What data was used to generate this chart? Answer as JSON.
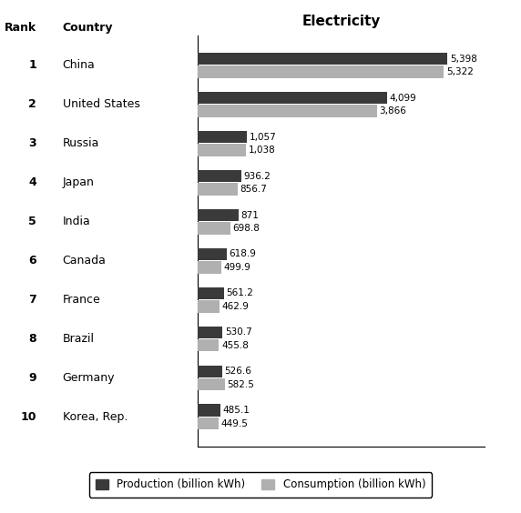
{
  "ranks": [
    1,
    2,
    3,
    4,
    5,
    6,
    7,
    8,
    9,
    10
  ],
  "countries": [
    "China",
    "United States",
    "Russia",
    "Japan",
    "India",
    "Canada",
    "France",
    "Brazil",
    "Germany",
    "Korea, Rep."
  ],
  "production": [
    5398,
    4099,
    1057,
    936.2,
    871,
    618.9,
    561.2,
    530.7,
    526.6,
    485.1
  ],
  "consumption": [
    5322,
    3866,
    1038,
    856.7,
    698.8,
    499.9,
    462.9,
    455.8,
    582.5,
    449.5
  ],
  "production_labels": [
    "5,398",
    "4,099",
    "1,057",
    "936.2",
    "871",
    "618.9",
    "561.2",
    "530.7",
    "526.6",
    "485.1"
  ],
  "consumption_labels": [
    "5,322",
    "3,866",
    "1,038",
    "856.7",
    "698.8",
    "499.9",
    "462.9",
    "455.8",
    "582.5",
    "449.5"
  ],
  "production_color": "#3a3a3a",
  "consumption_color": "#b0b0b0",
  "title": "Electricity",
  "rank_label": "Rank",
  "country_label": "Country",
  "legend_production": "Production (billion kWh)",
  "legend_consumption": "Consumption (billion kWh)",
  "xlim": [
    0,
    6200
  ],
  "background_color": "#ffffff",
  "bar_height": 0.32,
  "fontsize_labels": 8.5,
  "fontsize_title": 11,
  "fontsize_values": 7.5,
  "fontsize_header": 9,
  "fontsize_rank": 9,
  "fontsize_country": 9
}
